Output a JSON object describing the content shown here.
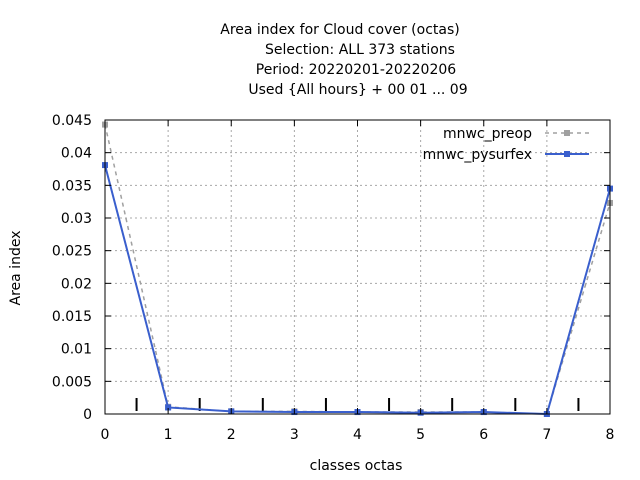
{
  "chart_data": {
    "type": "line",
    "title_lines": [
      "Area index  for Cloud cover (octas)",
      "Selection: ALL    373 stations",
      "Period: 20220201-20220206",
      "Used {All hours} + 00 01 ... 09"
    ],
    "xlabel": "classes octas",
    "ylabel": "Area index",
    "xlim": [
      0,
      8
    ],
    "ylim": [
      0,
      0.045
    ],
    "x_ticks": [
      0,
      1,
      2,
      3,
      4,
      5,
      6,
      7,
      8
    ],
    "y_ticks": [
      0,
      0.005,
      0.01,
      0.015,
      0.02,
      0.025,
      0.03,
      0.035,
      0.04,
      0.045
    ],
    "x_tick_labels": [
      "0",
      "1",
      "2",
      "3",
      "4",
      "5",
      "6",
      "7",
      "8"
    ],
    "y_tick_labels": [
      "0",
      "0.005",
      "0.01",
      "0.015",
      "0.02",
      "0.025",
      "0.03",
      "0.035",
      "0.04",
      "0.045"
    ],
    "grid": true,
    "legend_position": "top-right",
    "class_boundaries": [
      0.5,
      1.5,
      2.5,
      3.5,
      4.5,
      5.5,
      6.5,
      7.5
    ],
    "series": [
      {
        "name": "mnwc_preop",
        "color": "#a0a0a0",
        "dashed": true,
        "marker": "square",
        "x": [
          0,
          1,
          2,
          3,
          4,
          5,
          6,
          7,
          8
        ],
        "y": [
          0.0443,
          0.0011,
          0.0004,
          0.0004,
          0.0003,
          0.0003,
          0.0003,
          0.0,
          0.0323
        ]
      },
      {
        "name": "mnwc_pysurfex",
        "color": "#3a5fcd",
        "dashed": false,
        "marker": "square",
        "x": [
          0,
          1,
          2,
          3,
          4,
          5,
          6,
          7,
          8
        ],
        "y": [
          0.0381,
          0.001,
          0.0004,
          0.0003,
          0.0003,
          0.0002,
          0.0003,
          0.0,
          0.0345
        ]
      }
    ]
  }
}
